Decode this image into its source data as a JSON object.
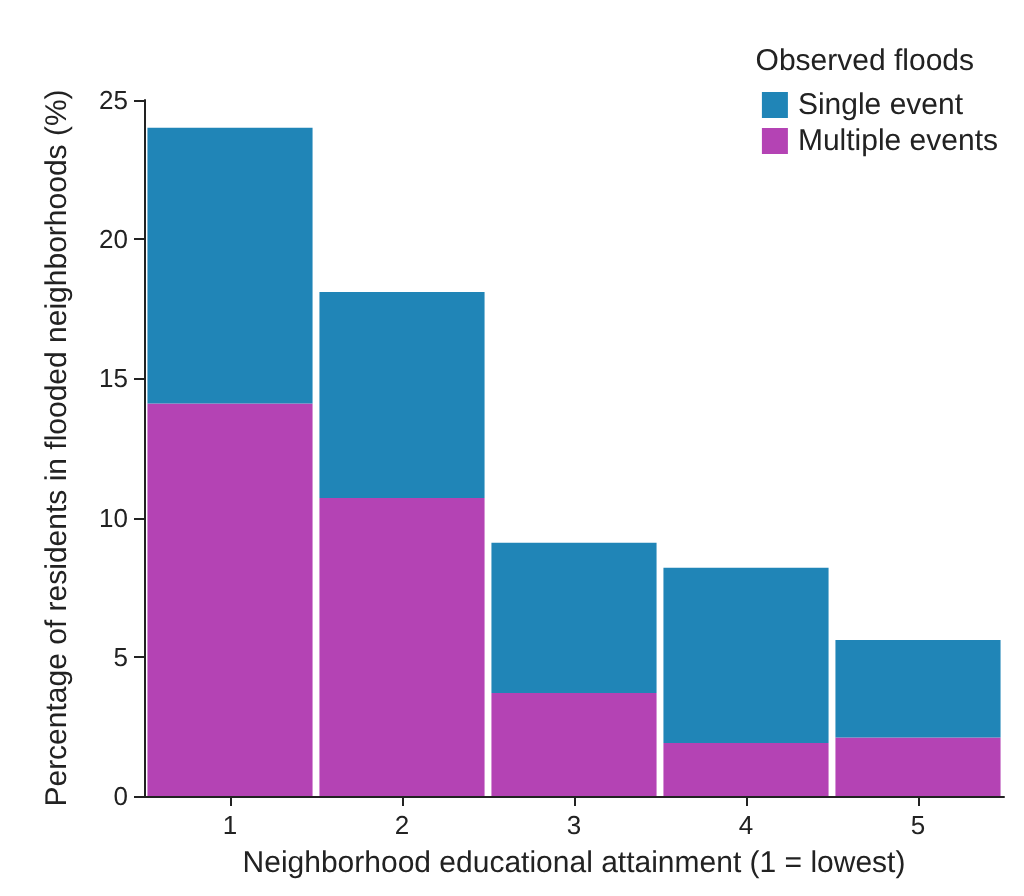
{
  "chart_data": {
    "type": "bar",
    "stacked": true,
    "xlabel": "Neighborhood educational attainment (1 = lowest)",
    "ylabel": "Percentage of residents in flooded neighborhoods (%)",
    "legend_title": "Observed floods",
    "legend": "top right",
    "categories": [
      "1",
      "2",
      "3",
      "4",
      "5"
    ],
    "series": [
      {
        "name": "Multiple events",
        "color": "#b443b4",
        "values": [
          14.1,
          10.7,
          3.7,
          1.9,
          2.1
        ]
      },
      {
        "name": "Single event",
        "color": "#2085b7",
        "values": [
          9.9,
          7.4,
          5.4,
          6.3,
          3.5
        ]
      }
    ],
    "ylim": [
      0,
      25
    ],
    "yticks": [
      0,
      5,
      10,
      15,
      20,
      25
    ],
    "grid": false
  }
}
